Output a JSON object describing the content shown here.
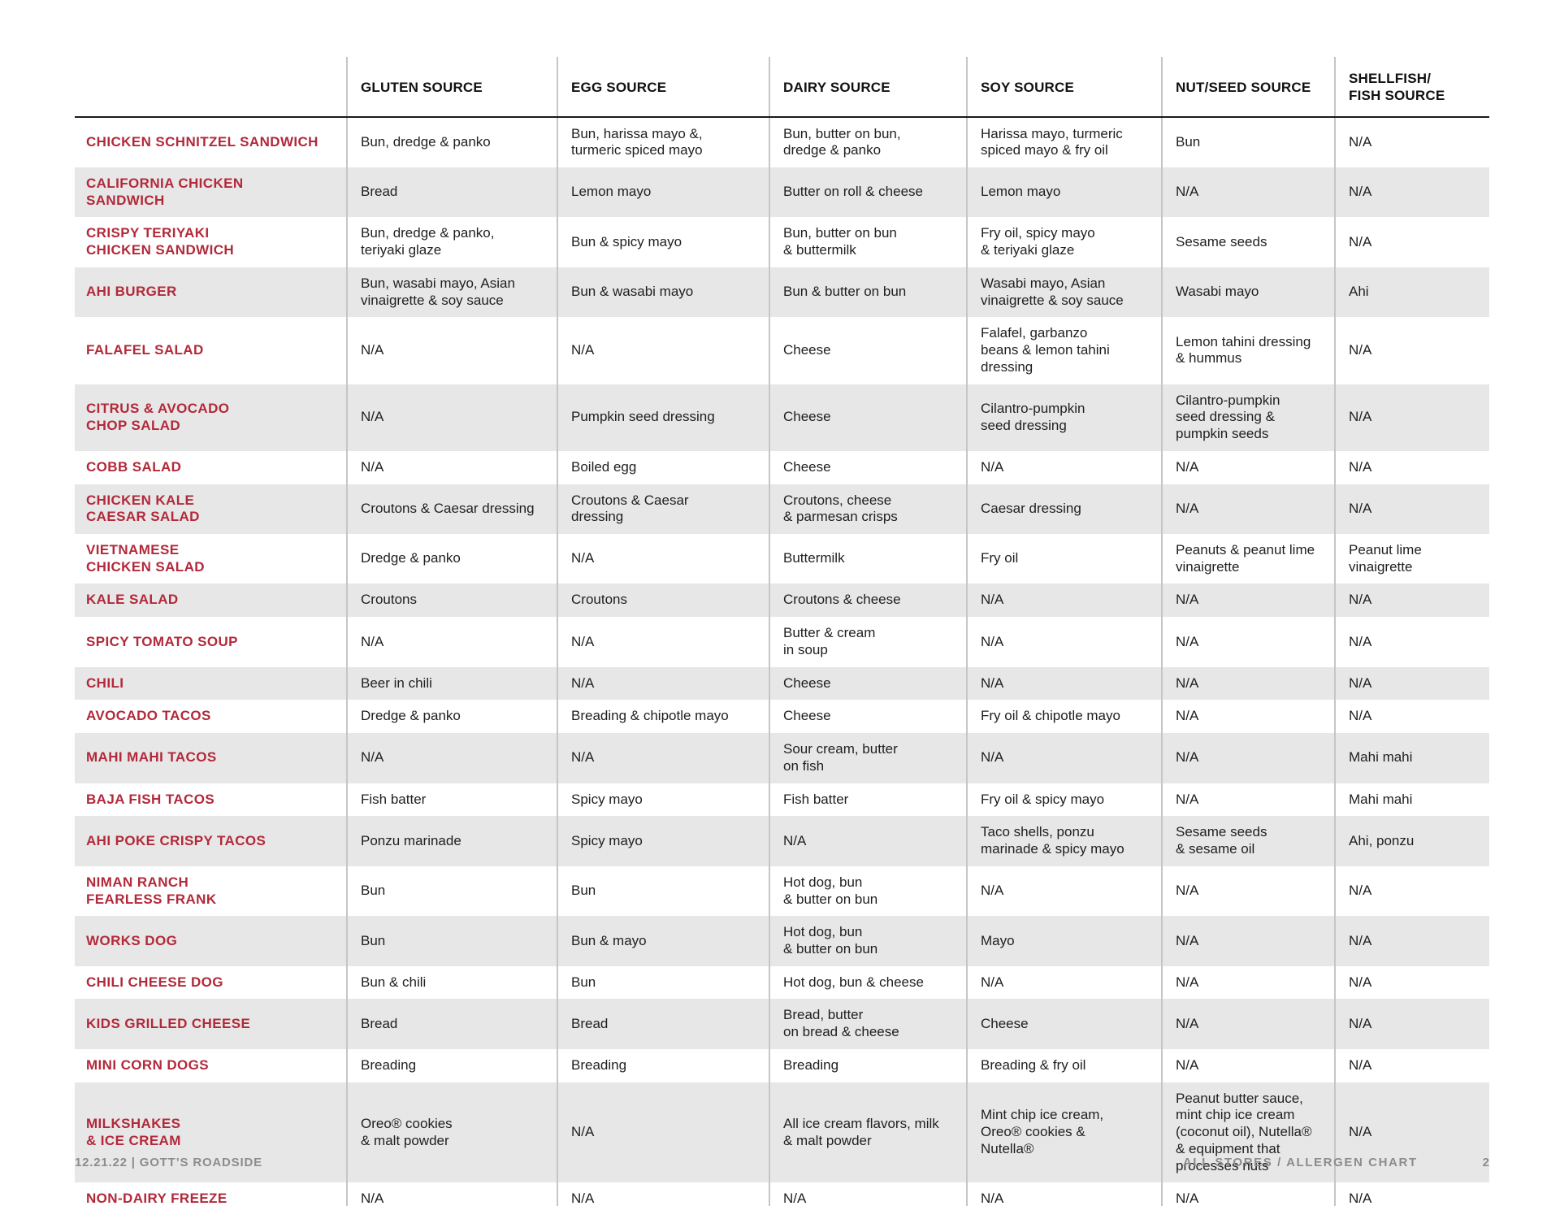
{
  "colors": {
    "accent_red": "#b2293a",
    "stripe_gray": "#e8e7e7",
    "header_rule": "#1a1a1a",
    "column_divider": "#c6c6c6",
    "footer_gray": "#8c8c8c"
  },
  "table": {
    "columns": [
      "GLUTEN SOURCE",
      "EGG SOURCE",
      "DAIRY SOURCE",
      "SOY SOURCE",
      "NUT/SEED SOURCE",
      "SHELLFISH/\nFISH SOURCE"
    ],
    "rows": [
      {
        "item": "CHICKEN SCHNITZEL SANDWICH",
        "cells": [
          "Bun, dredge & panko",
          "Bun, harissa mayo &,\nturmeric spiced mayo",
          "Bun, butter on bun,\ndredge & panko",
          "Harissa mayo, turmeric\nspiced mayo & fry oil",
          "Bun",
          "N/A"
        ]
      },
      {
        "item": "CALIFORNIA CHICKEN\nSANDWICH",
        "cells": [
          "Bread",
          "Lemon mayo",
          "Butter on roll & cheese",
          "Lemon mayo",
          "N/A",
          "N/A"
        ]
      },
      {
        "item": "CRISPY TERIYAKI\nCHICKEN SANDWICH",
        "cells": [
          "Bun, dredge & panko,\nteriyaki glaze",
          "Bun & spicy mayo",
          "Bun, butter on bun\n& buttermilk",
          "Fry oil, spicy mayo\n& teriyaki glaze",
          "Sesame seeds",
          "N/A"
        ]
      },
      {
        "item": "AHI BURGER",
        "cells": [
          "Bun, wasabi mayo, Asian\nvinaigrette & soy sauce",
          "Bun & wasabi mayo",
          "Bun & butter on bun",
          "Wasabi mayo, Asian\nvinaigrette & soy sauce",
          "Wasabi mayo",
          "Ahi"
        ]
      },
      {
        "item": "FALAFEL SALAD",
        "cells": [
          "N/A",
          "N/A",
          "Cheese",
          "Falafel, garbanzo\nbeans & lemon tahini\ndressing",
          "Lemon tahini dressing\n& hummus",
          "N/A"
        ]
      },
      {
        "item": "CITRUS & AVOCADO\nCHOP SALAD",
        "cells": [
          "N/A",
          "Pumpkin seed dressing",
          "Cheese",
          "Cilantro-pumpkin\nseed dressing",
          "Cilantro-pumpkin\nseed dressing &\npumpkin seeds",
          "N/A"
        ]
      },
      {
        "item": "COBB SALAD",
        "cells": [
          "N/A",
          "Boiled egg",
          "Cheese",
          "N/A",
          "N/A",
          "N/A"
        ]
      },
      {
        "item": "CHICKEN KALE\nCAESAR SALAD",
        "cells": [
          "Croutons & Caesar dressing",
          "Croutons & Caesar\ndressing",
          "Croutons, cheese\n& parmesan crisps",
          "Caesar dressing",
          "N/A",
          "N/A"
        ]
      },
      {
        "item": "VIETNAMESE\nCHICKEN SALAD",
        "cells": [
          "Dredge & panko",
          "N/A",
          "Buttermilk",
          "Fry oil",
          "Peanuts & peanut lime\nvinaigrette",
          "Peanut lime\nvinaigrette"
        ]
      },
      {
        "item": "KALE SALAD",
        "cells": [
          "Croutons",
          "Croutons",
          "Croutons & cheese",
          "N/A",
          "N/A",
          "N/A"
        ]
      },
      {
        "item": "SPICY TOMATO SOUP",
        "cells": [
          "N/A",
          "N/A",
          "Butter & cream\nin soup",
          "N/A",
          "N/A",
          "N/A"
        ]
      },
      {
        "item": "CHILI",
        "cells": [
          "Beer in chili",
          "N/A",
          "Cheese",
          "N/A",
          "N/A",
          "N/A"
        ]
      },
      {
        "item": "AVOCADO TACOS",
        "cells": [
          "Dredge & panko",
          "Breading & chipotle mayo",
          "Cheese",
          "Fry oil & chipotle mayo",
          "N/A",
          "N/A"
        ]
      },
      {
        "item": "MAHI MAHI TACOS",
        "cells": [
          "N/A",
          "N/A",
          "Sour cream, butter\non fish",
          "N/A",
          "N/A",
          "Mahi mahi"
        ]
      },
      {
        "item": "BAJA FISH TACOS",
        "cells": [
          "Fish batter",
          "Spicy mayo",
          "Fish batter",
          "Fry oil & spicy mayo",
          "N/A",
          "Mahi mahi"
        ]
      },
      {
        "item": "AHI POKE CRISPY TACOS",
        "cells": [
          "Ponzu marinade",
          "Spicy mayo",
          "N/A",
          "Taco shells, ponzu\nmarinade & spicy mayo",
          "Sesame seeds\n& sesame oil",
          "Ahi, ponzu"
        ]
      },
      {
        "item": "NIMAN RANCH\nFEARLESS FRANK",
        "cells": [
          "Bun",
          "Bun",
          "Hot dog, bun\n& butter on bun",
          "N/A",
          "N/A",
          "N/A"
        ]
      },
      {
        "item": "WORKS DOG",
        "cells": [
          "Bun",
          "Bun & mayo",
          "Hot dog, bun\n& butter on bun",
          "Mayo",
          "N/A",
          "N/A"
        ]
      },
      {
        "item": "CHILI CHEESE DOG",
        "cells": [
          "Bun & chili",
          "Bun",
          "Hot dog, bun & cheese",
          "N/A",
          "N/A",
          "N/A"
        ]
      },
      {
        "item": "KIDS GRILLED CHEESE",
        "cells": [
          "Bread",
          "Bread",
          "Bread, butter\non bread & cheese",
          "Cheese",
          "N/A",
          "N/A"
        ]
      },
      {
        "item": "MINI CORN DOGS",
        "cells": [
          "Breading",
          "Breading",
          "Breading",
          "Breading & fry oil",
          "N/A",
          "N/A"
        ]
      },
      {
        "item": "MILKSHAKES\n& ICE CREAM",
        "cells": [
          "Oreo® cookies\n& malt powder",
          "N/A",
          "All ice cream flavors, milk\n& malt powder",
          "Mint chip ice cream,\nOreo® cookies &\nNutella®",
          "Peanut butter sauce,\nmint chip ice cream\n(coconut oil),  Nutella®\n& equipment that\nprocesses nuts",
          "N/A"
        ]
      },
      {
        "item": "NON-DAIRY FREEZE",
        "cells": [
          "N/A",
          "N/A",
          "N/A",
          "N/A",
          "N/A",
          "N/A"
        ]
      }
    ]
  },
  "footer": {
    "left": "12.21.22  |  GOTT’S ROADSIDE",
    "right": "ALL STORES / ALLERGEN CHART",
    "page": "2"
  }
}
